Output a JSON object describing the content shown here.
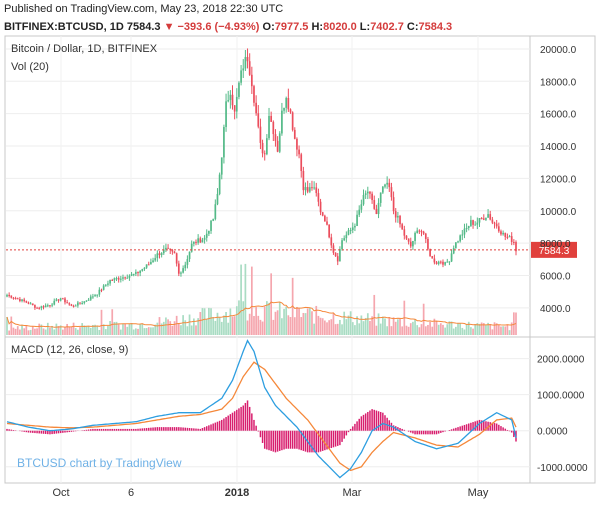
{
  "header": {
    "published": "Published on TradingView.com, May 23, 2018 22:30 UTC",
    "symbol": "BITFINEX:BTCUSD, 1D",
    "last": "7584.3",
    "change": "▼ −393.6 (−4.93%)",
    "o_label": "O:",
    "o_value": "7977.5",
    "h_label": "H:",
    "h_value": "8020.0",
    "l_label": "L:",
    "l_value": "7402.7",
    "c_label": "C:",
    "c_value": "7584.3"
  },
  "colors": {
    "up": "#53b987",
    "down": "#eb4d5c",
    "macd": "#2d9ee0",
    "signal": "#f5883a",
    "hist": "#d81e6e",
    "vol_up": "#a9dcc3",
    "vol_down": "#f5a6ae",
    "vol_ma": "#f5883a"
  },
  "watermark": "BTCUSD chart by TradingView",
  "chart_data": [
    {
      "type": "candlestick",
      "title": "Bitcoin / Dollar, 1D, BITFINEX",
      "indicator_label": "Vol (20)",
      "ylim": [
        2200,
        20800
      ],
      "y_ticks": [
        4000,
        6000,
        8000,
        10000,
        12000,
        14000,
        16000,
        18000,
        20000
      ],
      "y_tick_labels": [
        "4000.0",
        "6000.0",
        "8000.0",
        "10000.0",
        "12000.0",
        "14000.0",
        "16000.0",
        "18000.0",
        "20000.0"
      ],
      "x_ticks": [
        "Oct",
        "6",
        "2018",
        "Mar",
        "May"
      ],
      "last_price_line": 7584.3,
      "last_price_label": "7584.3",
      "price_path": [
        [
          0,
          4800
        ],
        [
          6,
          4500
        ],
        [
          10,
          4300
        ],
        [
          14,
          4000
        ],
        [
          20,
          4200
        ],
        [
          25,
          4600
        ],
        [
          30,
          4100
        ],
        [
          36,
          4400
        ],
        [
          42,
          4900
        ],
        [
          48,
          5700
        ],
        [
          54,
          5900
        ],
        [
          60,
          6100
        ],
        [
          66,
          6700
        ],
        [
          70,
          7300
        ],
        [
          74,
          7600
        ],
        [
          78,
          7300
        ],
        [
          80,
          6100
        ],
        [
          83,
          6700
        ],
        [
          86,
          7900
        ],
        [
          88,
          8100
        ],
        [
          92,
          8300
        ],
        [
          96,
          9500
        ],
        [
          98,
          11000
        ],
        [
          100,
          13500
        ],
        [
          102,
          16500
        ],
        [
          104,
          17500
        ],
        [
          106,
          16000
        ],
        [
          108,
          17800
        ],
        [
          110,
          19000
        ],
        [
          112,
          19500
        ],
        [
          114,
          18000
        ],
        [
          116,
          16000
        ],
        [
          118,
          14000
        ],
        [
          120,
          13500
        ],
        [
          122,
          16000
        ],
        [
          124,
          15000
        ],
        [
          126,
          13800
        ],
        [
          128,
          16000
        ],
        [
          130,
          17200
        ],
        [
          132,
          16000
        ],
        [
          134,
          14500
        ],
        [
          136,
          13500
        ],
        [
          138,
          11500
        ],
        [
          140,
          11200
        ],
        [
          142,
          11500
        ],
        [
          144,
          11000
        ],
        [
          146,
          10000
        ],
        [
          148,
          9500
        ],
        [
          150,
          8500
        ],
        [
          152,
          7500
        ],
        [
          154,
          7000
        ],
        [
          156,
          8200
        ],
        [
          158,
          8500
        ],
        [
          160,
          8800
        ],
        [
          162,
          9200
        ],
        [
          164,
          10000
        ],
        [
          166,
          10800
        ],
        [
          168,
          11200
        ],
        [
          170,
          10500
        ],
        [
          172,
          9800
        ],
        [
          174,
          11000
        ],
        [
          176,
          11600
        ],
        [
          178,
          11400
        ],
        [
          180,
          10000
        ],
        [
          182,
          9500
        ],
        [
          184,
          8800
        ],
        [
          186,
          8200
        ],
        [
          188,
          7800
        ],
        [
          190,
          8500
        ],
        [
          192,
          8900
        ],
        [
          194,
          8600
        ],
        [
          196,
          7600
        ],
        [
          198,
          7000
        ],
        [
          200,
          6800
        ],
        [
          202,
          6900
        ],
        [
          204,
          6700
        ],
        [
          206,
          7000
        ],
        [
          208,
          7800
        ],
        [
          210,
          8200
        ],
        [
          212,
          8600
        ],
        [
          214,
          8900
        ],
        [
          216,
          9300
        ],
        [
          218,
          9200
        ],
        [
          220,
          9400
        ],
        [
          222,
          9600
        ],
        [
          224,
          9800
        ],
        [
          226,
          9300
        ],
        [
          228,
          9100
        ],
        [
          230,
          8700
        ],
        [
          232,
          8400
        ],
        [
          234,
          8300
        ],
        [
          236,
          8100
        ],
        [
          237,
          7584
        ]
      ],
      "volume_path": [
        [
          0,
          0.08
        ],
        [
          20,
          0.1
        ],
        [
          40,
          0.11
        ],
        [
          60,
          0.12
        ],
        [
          80,
          0.18
        ],
        [
          100,
          0.25
        ],
        [
          110,
          0.32
        ],
        [
          120,
          0.28
        ],
        [
          130,
          0.26
        ],
        [
          140,
          0.24
        ],
        [
          150,
          0.22
        ],
        [
          160,
          0.2
        ],
        [
          170,
          0.18
        ],
        [
          180,
          0.16
        ],
        [
          200,
          0.13
        ],
        [
          220,
          0.11
        ],
        [
          237,
          0.1
        ]
      ]
    },
    {
      "type": "line",
      "title": "MACD (12, 26, close, 9)",
      "ylim": [
        -1450,
        2600
      ],
      "y_ticks": [
        -1000,
        0,
        1000,
        2000
      ],
      "y_tick_labels": [
        "-1000.0000",
        "0.0000",
        "1000.0000",
        "2000.0000"
      ],
      "macd_path": [
        [
          0,
          250
        ],
        [
          10,
          100
        ],
        [
          20,
          0
        ],
        [
          30,
          50
        ],
        [
          40,
          150
        ],
        [
          50,
          200
        ],
        [
          60,
          250
        ],
        [
          70,
          400
        ],
        [
          80,
          500
        ],
        [
          90,
          500
        ],
        [
          100,
          900
        ],
        [
          105,
          1400
        ],
        [
          110,
          2200
        ],
        [
          112,
          2500
        ],
        [
          115,
          2200
        ],
        [
          120,
          1200
        ],
        [
          125,
          700
        ],
        [
          130,
          400
        ],
        [
          135,
          100
        ],
        [
          140,
          -300
        ],
        [
          145,
          -700
        ],
        [
          150,
          -1000
        ],
        [
          155,
          -1300
        ],
        [
          160,
          -1050
        ],
        [
          165,
          -600
        ],
        [
          170,
          0
        ],
        [
          175,
          200
        ],
        [
          180,
          100
        ],
        [
          190,
          -300
        ],
        [
          200,
          -500
        ],
        [
          210,
          -350
        ],
        [
          220,
          200
        ],
        [
          228,
          500
        ],
        [
          235,
          300
        ],
        [
          237,
          -200
        ]
      ],
      "signal_path": [
        [
          0,
          200
        ],
        [
          10,
          150
        ],
        [
          20,
          100
        ],
        [
          30,
          80
        ],
        [
          40,
          100
        ],
        [
          50,
          150
        ],
        [
          60,
          200
        ],
        [
          70,
          300
        ],
        [
          80,
          400
        ],
        [
          90,
          450
        ],
        [
          100,
          600
        ],
        [
          105,
          900
        ],
        [
          110,
          1500
        ],
        [
          115,
          1900
        ],
        [
          120,
          1700
        ],
        [
          125,
          1300
        ],
        [
          130,
          900
        ],
        [
          135,
          600
        ],
        [
          140,
          300
        ],
        [
          145,
          -100
        ],
        [
          150,
          -500
        ],
        [
          155,
          -900
        ],
        [
          160,
          -1100
        ],
        [
          165,
          -1000
        ],
        [
          170,
          -600
        ],
        [
          175,
          -300
        ],
        [
          180,
          -50
        ],
        [
          190,
          -200
        ],
        [
          200,
          -400
        ],
        [
          210,
          -450
        ],
        [
          220,
          -100
        ],
        [
          228,
          300
        ],
        [
          235,
          350
        ],
        [
          237,
          100
        ]
      ]
    }
  ]
}
